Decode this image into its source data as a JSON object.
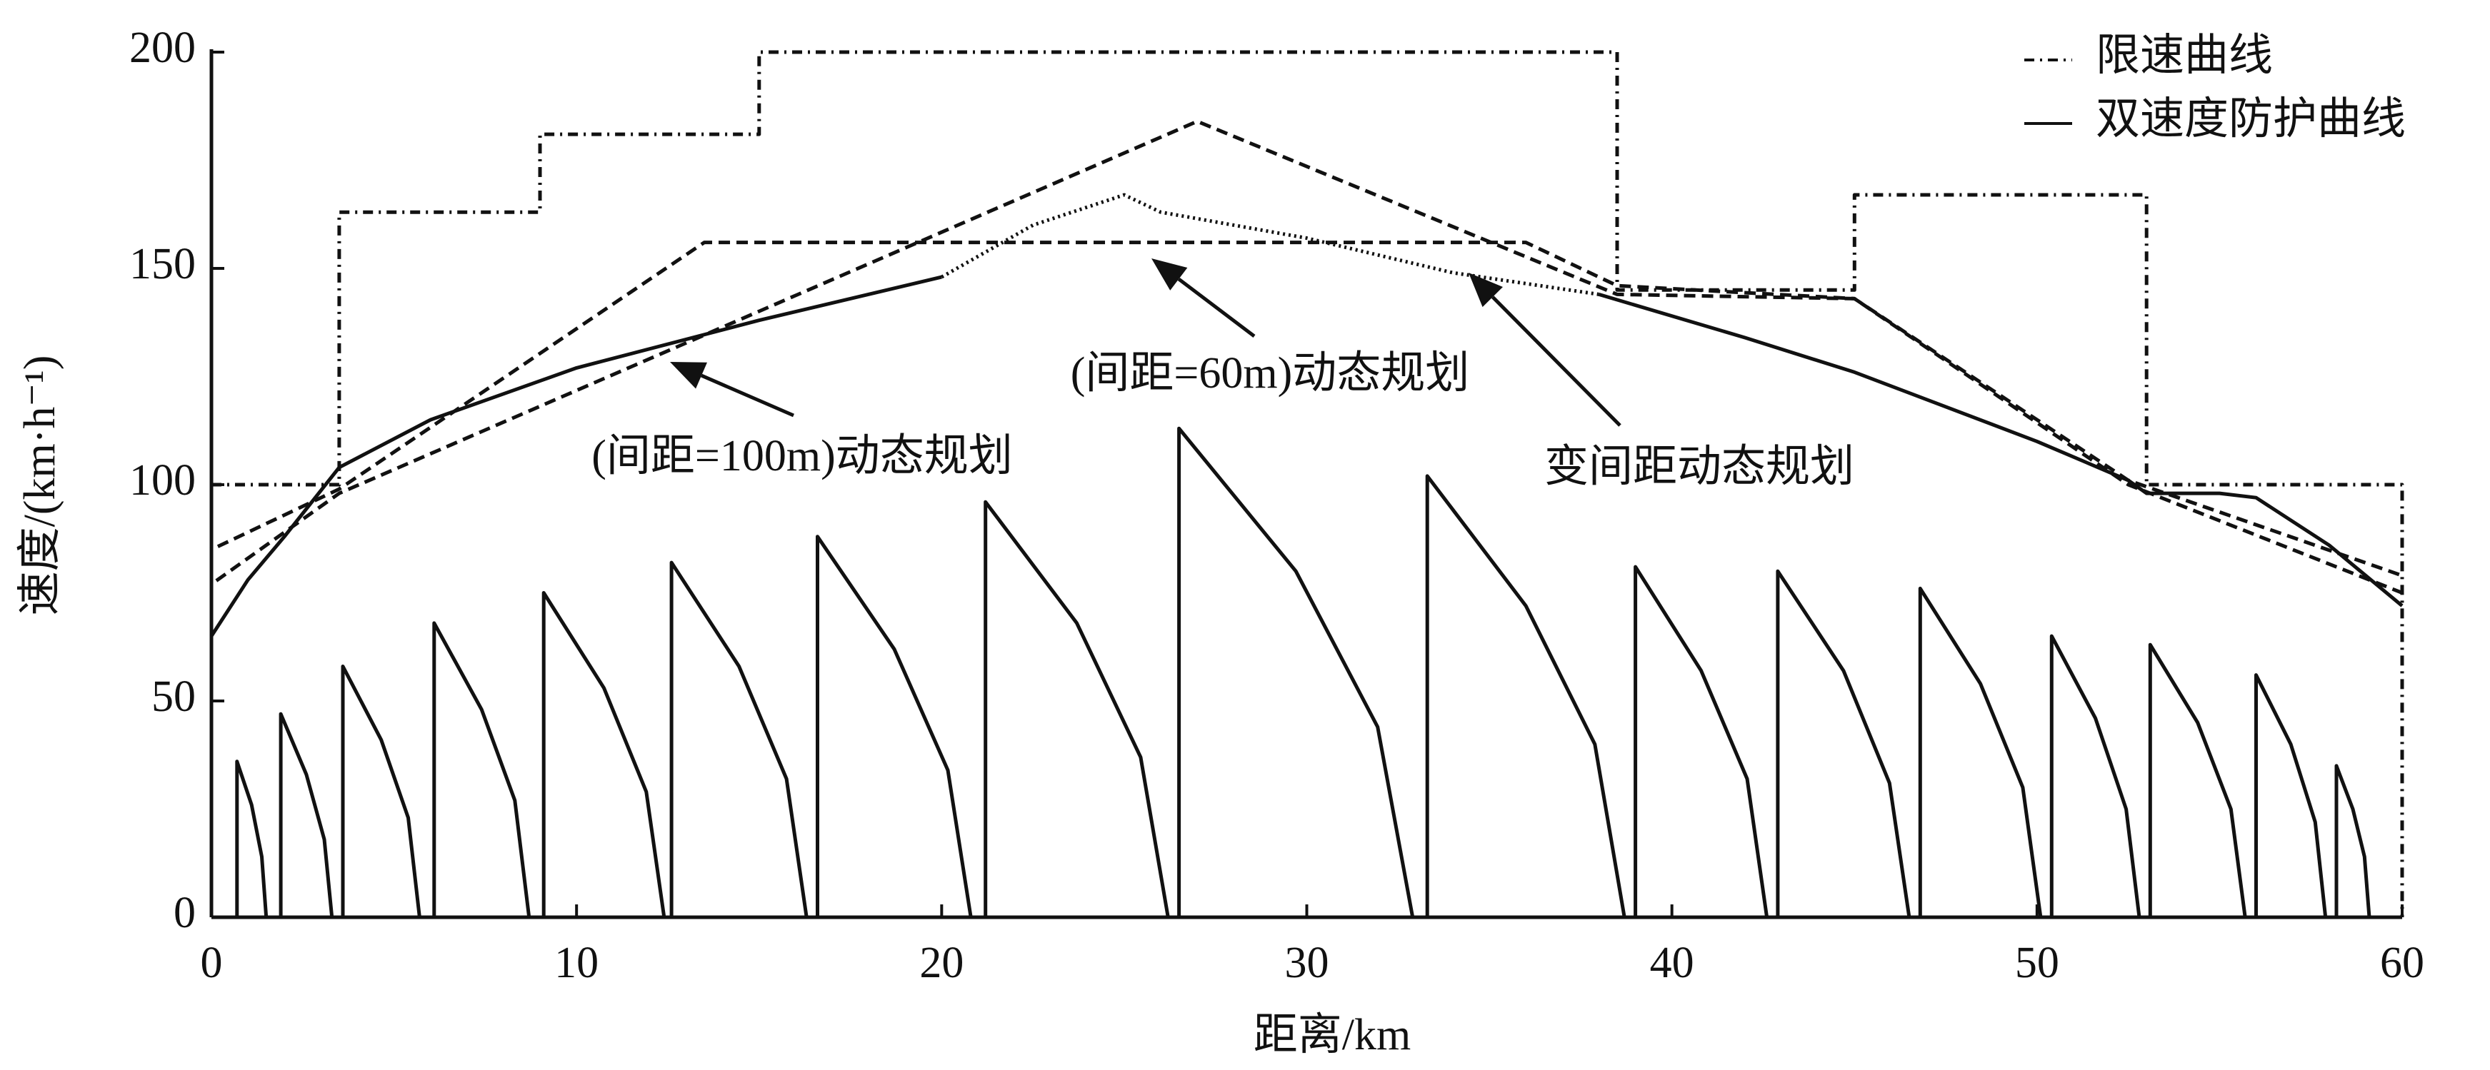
{
  "chart_data": {
    "type": "line",
    "x_label": "距离/km",
    "y_label": "速度/(km·h⁻¹)",
    "xlim": [
      0,
      60
    ],
    "ylim": [
      0,
      200
    ],
    "xticks": [
      0,
      10,
      20,
      30,
      40,
      50,
      60
    ],
    "yticks": [
      0,
      50,
      100,
      150,
      200
    ],
    "legend": "top-right",
    "series": [
      {
        "name": "限速曲线",
        "color": "#111111",
        "dash": "14,8,3,8",
        "x": [
          0,
          3.5,
          3.5,
          9,
          9,
          15,
          15,
          38.5,
          38.5,
          45,
          45,
          53,
          53,
          60,
          60
        ],
        "values": [
          100,
          100,
          163,
          163,
          181,
          181,
          200,
          200,
          145,
          145,
          167,
          167,
          100,
          100,
          0
        ]
      },
      {
        "name": "双速度防护曲线",
        "color": "#111111",
        "dash": "none",
        "x": [
          0.7,
          0.7,
          1.1,
          1.38,
          1.5,
          null,
          1.9,
          1.9,
          2.6,
          3.09,
          3.3,
          null,
          3.6,
          3.6,
          4.65,
          5.39,
          5.7,
          null,
          6.1,
          6.1,
          7.4,
          8.31,
          8.7,
          null,
          9.1,
          9.1,
          10.75,
          11.91,
          12.4,
          null,
          12.6,
          12.6,
          14.45,
          15.75,
          16.3,
          null,
          16.6,
          16.6,
          18.7,
          20.17,
          20.8,
          null,
          21.2,
          21.2,
          23.7,
          25.45,
          26.2,
          null,
          26.5,
          26.5,
          29.7,
          31.94,
          32.9,
          null,
          33.3,
          33.3,
          36,
          37.89,
          38.7,
          null,
          39,
          39,
          40.8,
          42.06,
          42.6,
          null,
          42.9,
          42.9,
          44.7,
          45.96,
          46.5,
          null,
          46.8,
          46.8,
          48.45,
          49.61,
          50.1,
          null,
          50.4,
          50.4,
          51.6,
          52.44,
          52.8,
          null,
          53.1,
          53.1,
          54.4,
          55.31,
          55.7,
          null,
          56,
          56,
          56.95,
          57.62,
          57.9,
          null,
          58.2,
          58.2,
          58.65,
          58.97,
          59.1
        ],
        "values": [
          0,
          36,
          26,
          14,
          0,
          null,
          0,
          47,
          33,
          18,
          0,
          null,
          0,
          58,
          41,
          23,
          0,
          null,
          0,
          68,
          48,
          27,
          0,
          null,
          0,
          75,
          53,
          29,
          0,
          null,
          0,
          82,
          58,
          32,
          0,
          null,
          0,
          88,
          62,
          34,
          0,
          null,
          0,
          96,
          68,
          37,
          0,
          null,
          0,
          113,
          80,
          44,
          0,
          null,
          0,
          102,
          72,
          40,
          0,
          null,
          0,
          81,
          57,
          32,
          0,
          null,
          0,
          80,
          57,
          31,
          0,
          null,
          0,
          76,
          54,
          30,
          0,
          null,
          0,
          65,
          46,
          25,
          0,
          null,
          0,
          63,
          45,
          25,
          0,
          null,
          0,
          56,
          40,
          22,
          0,
          null,
          0,
          35,
          25,
          14,
          0
        ]
      },
      {
        "color": "#111111",
        "dash": "16,9",
        "x": [
          0,
          0,
          3.5,
          13.5,
          36,
          38.5,
          45,
          52.5,
          60
        ],
        "values": [
          0,
          85,
          99,
          156,
          156,
          146,
          143,
          101,
          79
        ]
      },
      {
        "color": "#111111",
        "dash": "16,9",
        "x": [
          0,
          0,
          3.5,
          27,
          38.5,
          45,
          52.5,
          60
        ],
        "values": [
          0,
          77,
          98,
          184,
          144,
          143,
          100,
          75
        ]
      },
      {
        "color": "#111111",
        "dash": "none",
        "x": [
          0,
          1,
          2,
          3.5,
          6,
          10,
          15,
          20,
          null,
          38,
          42,
          45,
          50,
          52.5,
          53,
          55,
          56,
          58,
          60
        ],
        "values": [
          65,
          78,
          88,
          104,
          115,
          127,
          138,
          148,
          null,
          144,
          134,
          126,
          110,
          101,
          98,
          98,
          97,
          86,
          72
        ]
      },
      {
        "color": "#111111",
        "dash": "3,5",
        "x": [
          20,
          22.5,
          25,
          26,
          30,
          34,
          38
        ],
        "values": [
          148,
          160,
          167,
          163,
          157,
          149,
          144
        ]
      }
    ],
    "annotations": [
      "(间距=100m)动态规划",
      "(间距=60m)动态规划",
      "变间距动态规划"
    ]
  }
}
